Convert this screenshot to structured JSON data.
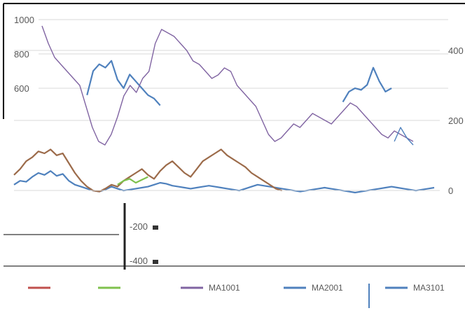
{
  "colors": {
    "blue": "#4f81bd",
    "brown": "#9c6b4a",
    "green": "#7fc14d",
    "purple": "#8064a2",
    "red": "#c0504d",
    "grid": "#d9d9d9",
    "tick_text": "#595959"
  },
  "chart_data": [
    {
      "type": "line",
      "title": "",
      "xlabel": "",
      "ylabel": "",
      "ylim": [
        0,
        1000
      ],
      "y_ticks": [
        "1000",
        "800",
        "600"
      ],
      "grid": true,
      "x": [
        0,
        1,
        2,
        3,
        4,
        5,
        6,
        7,
        8,
        9,
        10,
        11,
        12,
        13,
        14,
        15,
        16,
        17,
        18,
        19,
        20,
        21,
        22,
        23,
        24,
        25,
        26,
        27,
        28,
        29,
        30,
        31,
        32,
        33,
        34,
        35,
        36,
        37,
        38,
        39,
        40,
        41,
        42,
        43,
        44,
        45,
        46,
        47,
        48,
        49,
        50,
        51,
        52,
        53,
        54,
        55,
        56,
        57,
        58,
        59,
        60,
        61,
        62,
        63,
        64,
        65,
        66,
        67,
        68,
        69
      ],
      "series": [
        {
          "color_key": "blue",
          "values": [
            40,
            60,
            55,
            80,
            100,
            90,
            110,
            85,
            95,
            60,
            40,
            30,
            20,
            10,
            5,
            15,
            30,
            20,
            10,
            15,
            20,
            25,
            30,
            40,
            50,
            45,
            35,
            30,
            25,
            20,
            25,
            30,
            35,
            30,
            25,
            20,
            15,
            10,
            20,
            30,
            40,
            35,
            30,
            25,
            20,
            15,
            10,
            5,
            10,
            15,
            20,
            25,
            20,
            15,
            10,
            5,
            0,
            5,
            10,
            15,
            20,
            25,
            30,
            25,
            20,
            15,
            10,
            15,
            20,
            25
          ]
        },
        {
          "color_key": "blue",
          "values": [
            null,
            null,
            null,
            null,
            null,
            null,
            null,
            null,
            null,
            null,
            null,
            null,
            560,
            700,
            740,
            720,
            760,
            650,
            600,
            680,
            640,
            600,
            560,
            540,
            500,
            null,
            null,
            null,
            null,
            null,
            null,
            null,
            null,
            null,
            null,
            null,
            null,
            null,
            null,
            null,
            null,
            null,
            null,
            null,
            null,
            null,
            null,
            null,
            null,
            null,
            null,
            null,
            null,
            null,
            null,
            null,
            null,
            null,
            null,
            null,
            null,
            null,
            null,
            null,
            null,
            null,
            null,
            null,
            null,
            null
          ]
        },
        {
          "color_key": "blue",
          "values": [
            null,
            null,
            null,
            null,
            null,
            null,
            null,
            null,
            null,
            null,
            null,
            null,
            null,
            null,
            null,
            null,
            null,
            null,
            null,
            null,
            null,
            null,
            null,
            null,
            null,
            null,
            null,
            null,
            null,
            null,
            null,
            null,
            null,
            null,
            null,
            null,
            null,
            null,
            null,
            null,
            null,
            null,
            null,
            null,
            null,
            null,
            null,
            null,
            null,
            null,
            null,
            null,
            null,
            null,
            520,
            580,
            600,
            590,
            620,
            720,
            640,
            580,
            600,
            null,
            null,
            null,
            null,
            null,
            null,
            null
          ]
        },
        {
          "color_key": "brown",
          "values": [
            90,
            120,
            160,
            180,
            210,
            200,
            220,
            190,
            200,
            150,
            100,
            60,
            30,
            10,
            5,
            20,
            40,
            30,
            60,
            80,
            100,
            120,
            90,
            70,
            110,
            140,
            160,
            130,
            100,
            80,
            120,
            160,
            180,
            200,
            220,
            190,
            170,
            150,
            130,
            100,
            80,
            60,
            40,
            20,
            10,
            null,
            null,
            null,
            null,
            null,
            null,
            null,
            null,
            null,
            null,
            null,
            null,
            null,
            null,
            null,
            null,
            null,
            null,
            null,
            null,
            null,
            null,
            null,
            null,
            null
          ]
        },
        {
          "color_key": "green",
          "values": [
            null,
            null,
            null,
            null,
            null,
            null,
            null,
            null,
            null,
            null,
            null,
            null,
            null,
            null,
            null,
            null,
            null,
            40,
            60,
            70,
            50,
            65,
            80,
            null,
            null,
            null,
            null,
            null,
            null,
            null,
            null,
            null,
            null,
            null,
            null,
            null,
            null,
            null,
            null,
            null,
            null,
            null,
            null,
            null,
            null,
            null,
            null,
            null,
            null,
            null,
            null,
            null,
            null,
            null,
            null,
            null,
            null,
            null,
            null,
            null,
            null,
            null,
            null,
            null,
            null,
            null,
            null,
            null,
            null,
            null
          ]
        }
      ]
    },
    {
      "type": "line",
      "title": "",
      "xlabel": "",
      "ylabel": "",
      "ylim": [
        -400,
        400
      ],
      "y_ticks_right": [
        "400",
        "200",
        "0"
      ],
      "y_ticks_left": [
        "-200",
        "-400"
      ],
      "grid": true,
      "x": [
        0,
        1,
        2,
        3,
        4,
        5,
        6,
        7,
        8,
        9,
        10,
        11,
        12,
        13,
        14,
        15,
        16,
        17,
        18,
        19,
        20,
        21,
        22,
        23,
        24,
        25,
        26,
        27,
        28,
        29,
        30,
        31,
        32,
        33,
        34,
        35,
        36,
        37,
        38,
        39,
        40,
        41,
        42,
        43,
        44,
        45,
        46,
        47,
        48,
        49,
        50,
        51,
        52,
        53,
        54,
        55,
        56,
        57,
        58,
        59
      ],
      "series": [
        {
          "color_key": "purple",
          "values": [
            350,
            300,
            260,
            240,
            220,
            200,
            180,
            120,
            60,
            20,
            10,
            40,
            90,
            150,
            180,
            160,
            200,
            220,
            300,
            340,
            330,
            320,
            300,
            280,
            250,
            240,
            220,
            200,
            210,
            230,
            220,
            180,
            160,
            140,
            120,
            80,
            40,
            20,
            30,
            50,
            70,
            60,
            80,
            100,
            90,
            80,
            70,
            90,
            110,
            130,
            120,
            100,
            80,
            60,
            40,
            30,
            50,
            40,
            30,
            20
          ]
        },
        {
          "color_key": "blue",
          "values": [
            null,
            null,
            null,
            null,
            null,
            null,
            null,
            null,
            null,
            null,
            null,
            null,
            null,
            null,
            null,
            null,
            null,
            null,
            null,
            null,
            null,
            null,
            null,
            null,
            null,
            null,
            null,
            null,
            null,
            null,
            null,
            null,
            null,
            null,
            null,
            null,
            null,
            null,
            null,
            null,
            null,
            null,
            null,
            null,
            null,
            null,
            null,
            null,
            null,
            null,
            null,
            null,
            null,
            null,
            null,
            null,
            20,
            60,
            30,
            10
          ]
        }
      ],
      "legend_position": "bottom",
      "legend": [
        {
          "color_key": "red",
          "label": ""
        },
        {
          "color_key": "green",
          "label": ""
        },
        {
          "color_key": "purple",
          "label": "MA1001"
        },
        {
          "color_key": "blue",
          "label": "MA2001"
        },
        {
          "color_key": "blue",
          "label": "MA3101"
        }
      ]
    }
  ]
}
